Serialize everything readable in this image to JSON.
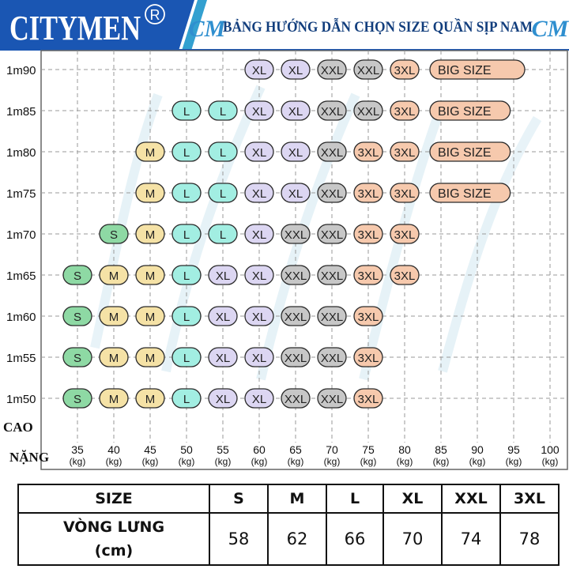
{
  "header": {
    "brand": "CITYMEN",
    "registered_mark": "R",
    "logo_monogram": "CM",
    "title": "BẢNG HƯỚNG DẪN CHỌN SIZE QUẦN SỊP NAM",
    "colors": {
      "brand_bg": "#1a56b3",
      "accent": "#33a0d0",
      "title_text": "#123e7d"
    }
  },
  "chart_data": {
    "type": "table",
    "xlabel": "NẶNG",
    "ylabel": "CAO",
    "x_ticks": [
      "35",
      "40",
      "45",
      "50",
      "55",
      "60",
      "65",
      "70",
      "75",
      "80",
      "85",
      "90",
      "95",
      "100"
    ],
    "x_unit": "(kg)",
    "y_ticks": [
      "1m90",
      "1m85",
      "1m80",
      "1m75",
      "1m70",
      "1m65",
      "1m60",
      "1m55",
      "1m50"
    ],
    "xlim": [
      35,
      100
    ],
    "grid": true,
    "size_colors": {
      "S": "#8ed9a4",
      "M": "#f5e2a6",
      "L": "#a2eee2",
      "XL": "#dcd6f2",
      "XXL": "#c7c7c7",
      "3XL": "#f6c9ad",
      "BIG SIZE": "#f6c9ad"
    },
    "rows": [
      {
        "height": "1m90",
        "cells": [
          {
            "weight": 60,
            "size": "XL"
          },
          {
            "weight": 65,
            "size": "XL"
          },
          {
            "weight": 70,
            "size": "XXL"
          },
          {
            "weight": 75,
            "size": "XXL"
          },
          {
            "weight": 80,
            "size": "3XL"
          },
          {
            "weight": 85,
            "size": "BIG SIZE",
            "span_to": 95
          }
        ]
      },
      {
        "height": "1m85",
        "cells": [
          {
            "weight": 50,
            "size": "L"
          },
          {
            "weight": 55,
            "size": "L"
          },
          {
            "weight": 60,
            "size": "XL"
          },
          {
            "weight": 65,
            "size": "XL"
          },
          {
            "weight": 70,
            "size": "XXL"
          },
          {
            "weight": 75,
            "size": "XXL"
          },
          {
            "weight": 80,
            "size": "3XL"
          },
          {
            "weight": 85,
            "size": "BIG SIZE",
            "span_to": 93
          }
        ]
      },
      {
        "height": "1m80",
        "cells": [
          {
            "weight": 45,
            "size": "M"
          },
          {
            "weight": 50,
            "size": "L"
          },
          {
            "weight": 55,
            "size": "L"
          },
          {
            "weight": 60,
            "size": "XL"
          },
          {
            "weight": 65,
            "size": "XL"
          },
          {
            "weight": 70,
            "size": "XXL"
          },
          {
            "weight": 75,
            "size": "3XL"
          },
          {
            "weight": 80,
            "size": "3XL"
          },
          {
            "weight": 85,
            "size": "BIG SIZE",
            "span_to": 93
          }
        ]
      },
      {
        "height": "1m75",
        "cells": [
          {
            "weight": 45,
            "size": "M"
          },
          {
            "weight": 50,
            "size": "L"
          },
          {
            "weight": 55,
            "size": "L"
          },
          {
            "weight": 60,
            "size": "XL"
          },
          {
            "weight": 65,
            "size": "XL"
          },
          {
            "weight": 70,
            "size": "XXL"
          },
          {
            "weight": 75,
            "size": "3XL"
          },
          {
            "weight": 80,
            "size": "3XL"
          },
          {
            "weight": 85,
            "size": "BIG SIZE",
            "span_to": 93
          }
        ]
      },
      {
        "height": "1m70",
        "cells": [
          {
            "weight": 40,
            "size": "S"
          },
          {
            "weight": 45,
            "size": "M"
          },
          {
            "weight": 50,
            "size": "L"
          },
          {
            "weight": 55,
            "size": "L"
          },
          {
            "weight": 60,
            "size": "XL"
          },
          {
            "weight": 65,
            "size": "XXL"
          },
          {
            "weight": 70,
            "size": "XXL"
          },
          {
            "weight": 75,
            "size": "3XL"
          },
          {
            "weight": 80,
            "size": "3XL"
          }
        ]
      },
      {
        "height": "1m65",
        "cells": [
          {
            "weight": 35,
            "size": "S"
          },
          {
            "weight": 40,
            "size": "M"
          },
          {
            "weight": 45,
            "size": "M"
          },
          {
            "weight": 50,
            "size": "L"
          },
          {
            "weight": 55,
            "size": "XL"
          },
          {
            "weight": 60,
            "size": "XL"
          },
          {
            "weight": 65,
            "size": "XXL"
          },
          {
            "weight": 70,
            "size": "XXL"
          },
          {
            "weight": 75,
            "size": "3XL"
          },
          {
            "weight": 80,
            "size": "3XL"
          }
        ]
      },
      {
        "height": "1m60",
        "cells": [
          {
            "weight": 35,
            "size": "S"
          },
          {
            "weight": 40,
            "size": "M"
          },
          {
            "weight": 45,
            "size": "M"
          },
          {
            "weight": 50,
            "size": "L"
          },
          {
            "weight": 55,
            "size": "XL"
          },
          {
            "weight": 60,
            "size": "XL"
          },
          {
            "weight": 65,
            "size": "XXL"
          },
          {
            "weight": 70,
            "size": "XXL"
          },
          {
            "weight": 75,
            "size": "3XL"
          }
        ]
      },
      {
        "height": "1m55",
        "cells": [
          {
            "weight": 35,
            "size": "S"
          },
          {
            "weight": 40,
            "size": "M"
          },
          {
            "weight": 45,
            "size": "M"
          },
          {
            "weight": 50,
            "size": "L"
          },
          {
            "weight": 55,
            "size": "XL"
          },
          {
            "weight": 60,
            "size": "XL"
          },
          {
            "weight": 65,
            "size": "XXL"
          },
          {
            "weight": 70,
            "size": "XXL"
          },
          {
            "weight": 75,
            "size": "3XL"
          }
        ]
      },
      {
        "height": "1m50",
        "cells": [
          {
            "weight": 35,
            "size": "S"
          },
          {
            "weight": 40,
            "size": "M"
          },
          {
            "weight": 45,
            "size": "M"
          },
          {
            "weight": 50,
            "size": "L"
          },
          {
            "weight": 55,
            "size": "XL"
          },
          {
            "weight": 60,
            "size": "XL"
          },
          {
            "weight": 65,
            "size": "XXL"
          },
          {
            "weight": 70,
            "size": "XXL"
          },
          {
            "weight": 75,
            "size": "3XL"
          }
        ]
      }
    ]
  },
  "size_table": {
    "header_label": "SIZE",
    "sizes": [
      "S",
      "M",
      "L",
      "XL",
      "XXL",
      "3XL"
    ],
    "row_label_line1": "VÒNG LƯNG",
    "row_label_line2": "(cm)",
    "waist_cm": [
      "58",
      "62",
      "66",
      "70",
      "74",
      "78"
    ]
  }
}
